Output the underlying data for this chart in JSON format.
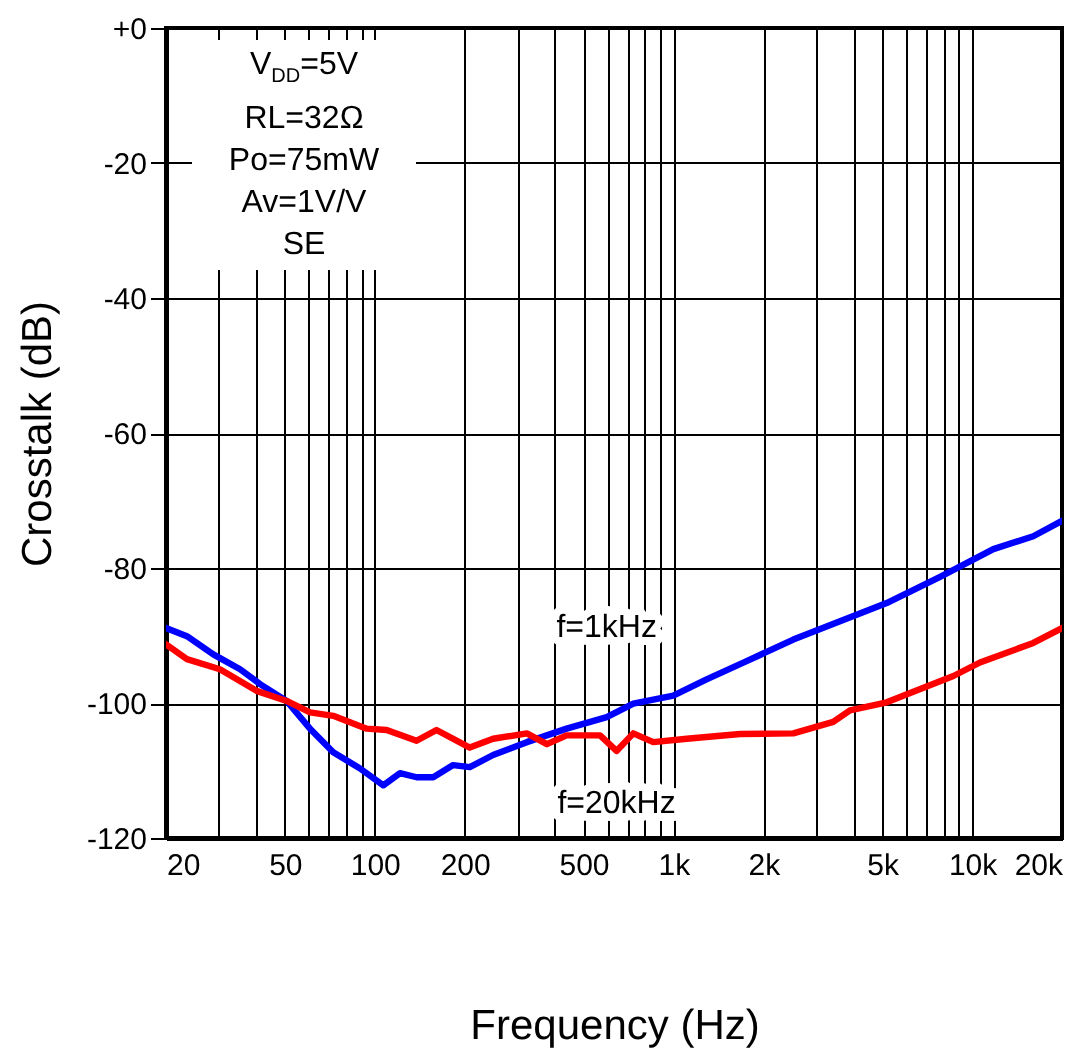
{
  "chart_data": {
    "type": "line",
    "xlabel": "Frequency (Hz)",
    "ylabel": "Crosstalk (dB)",
    "log": "x",
    "grid": true,
    "line_style": "solid",
    "marker": "none",
    "annotations": [
      "V$_{DD}$=5V",
      "RL=32Ω",
      "Po=75mW",
      "Av=1V/V",
      "SE"
    ],
    "xlim": [
      20,
      20000
    ],
    "ylim": [
      -120,
      0
    ],
    "xticks": [
      20,
      {
        "value": 30,
        "label": null
      },
      {
        "value": 40,
        "label": null
      },
      50,
      {
        "value": 60,
        "label": null
      },
      {
        "value": 70,
        "label": null
      },
      {
        "value": 80,
        "label": null
      },
      {
        "value": 90,
        "label": null
      },
      100,
      200,
      {
        "value": 300,
        "label": null
      },
      {
        "value": 400,
        "label": null
      },
      500,
      {
        "value": 600,
        "label": null
      },
      {
        "value": 700,
        "label": null
      },
      {
        "value": 800,
        "label": null
      },
      {
        "value": 900,
        "label": null
      },
      {
        "value": 1000,
        "label": "1k"
      },
      {
        "value": 2000,
        "label": "2k"
      },
      {
        "value": 3000,
        "label": null
      },
      {
        "value": 4000,
        "label": null
      },
      {
        "value": 5000,
        "label": "5k"
      },
      {
        "value": 6000,
        "label": null
      },
      {
        "value": 7000,
        "label": null
      },
      {
        "value": 8000,
        "label": null
      },
      {
        "value": 9000,
        "label": null
      },
      {
        "value": 10000,
        "label": "10k"
      },
      {
        "value": 20000,
        "label": "20k"
      }
    ],
    "yticks": [
      {
        "value": 0,
        "label": "+0"
      },
      -20,
      -40,
      -60,
      -80,
      -100,
      -120
    ],
    "series": [
      {
        "name": "f=1kHz",
        "color": "#0000ff",
        "x": [
          20,
          23.5,
          28.8,
          35.4,
          41.3,
          50.7,
          60.7,
          72.6,
          89.3,
          106.8,
          121.5,
          138,
          157,
          183,
          208,
          249,
          323,
          439,
          598,
          734,
          999,
          1291,
          1758,
          2520,
          3612,
          5176,
          7814,
          11780,
          16030,
          20000
        ],
        "values": [
          -88.9,
          -90.1,
          -92.8,
          -95.0,
          -97.2,
          -99.7,
          -103.8,
          -107.3,
          -109.7,
          -112.2,
          -110.4,
          -111.0,
          -111.0,
          -109.2,
          -109.5,
          -107.7,
          -105.8,
          -103.8,
          -102.1,
          -100.1,
          -98.9,
          -96.5,
          -93.8,
          -90.6,
          -87.9,
          -85.2,
          -81.3,
          -77.2,
          -75.3,
          -73.0
        ]
      },
      {
        "name": "f=20kHz",
        "color": "#ff0000",
        "x": [
          20,
          23.5,
          30.3,
          40.2,
          50.7,
          60.7,
          72.6,
          94,
          109.6,
          138,
          161,
          208,
          249,
          323,
          377,
          439,
          568,
          645,
          734,
          856,
          1108,
          1672,
          2520,
          3428,
          3900,
          5176,
          8654,
          10624,
          16030,
          20000
        ],
        "values": [
          -91.3,
          -93.5,
          -95.0,
          -98.2,
          -99.7,
          -101.4,
          -101.9,
          -103.8,
          -104.0,
          -105.6,
          -104.0,
          -106.6,
          -105.3,
          -104.5,
          -106.1,
          -104.8,
          -104.8,
          -107.1,
          -104.5,
          -105.8,
          -105.3,
          -104.6,
          -104.5,
          -102.8,
          -101.1,
          -99.9,
          -96.0,
          -94.0,
          -91.1,
          -88.9
        ]
      }
    ]
  }
}
